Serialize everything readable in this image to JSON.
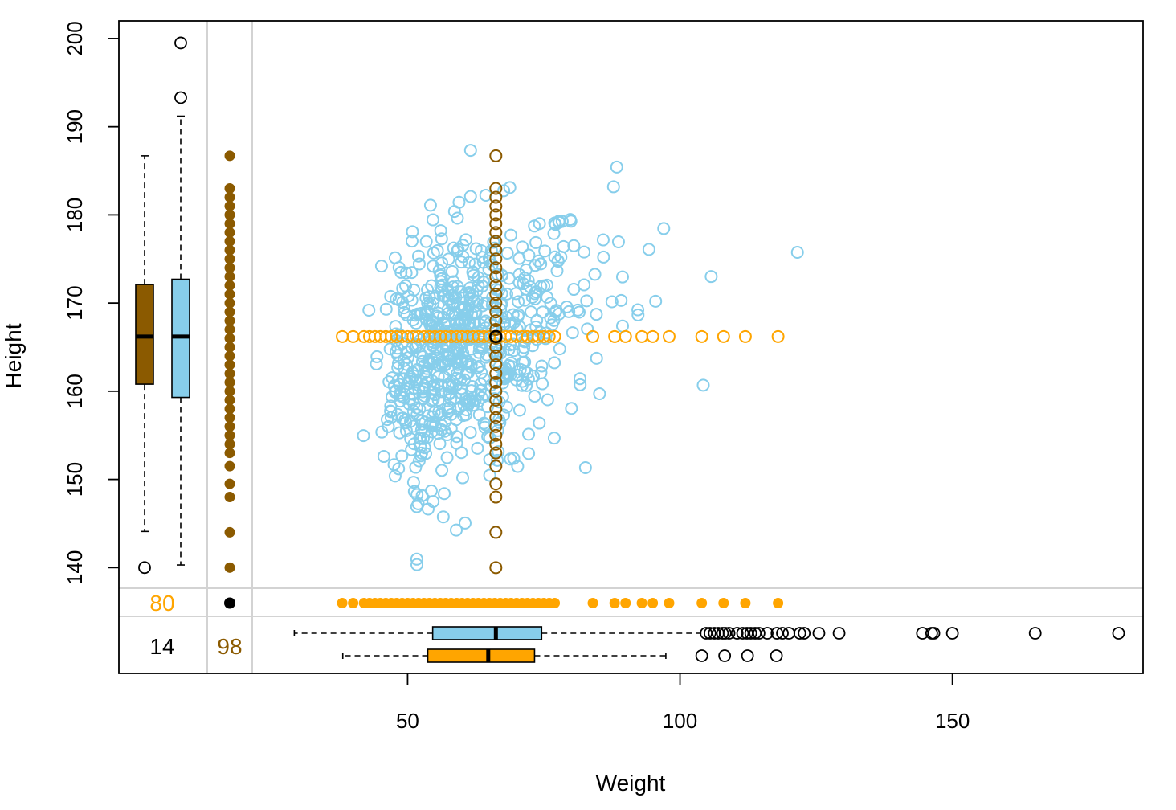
{
  "chart_data": {
    "type": "scatter",
    "title": "",
    "xlabel": "Weight",
    "ylabel": "Height",
    "xlim": [
      -3,
      185
    ],
    "ylim": [
      128,
      202
    ],
    "x_ticks": [
      50,
      100,
      150
    ],
    "y_ticks": [
      140,
      150,
      160,
      170,
      180,
      190,
      200
    ],
    "grid": false,
    "colors": {
      "observed": "#87CEEB",
      "imputed_weight": "#FFA500",
      "imputed_height": "#8B5A00",
      "both_missing": "#000000",
      "divider": "#D3D3D3"
    },
    "margin_counts": {
      "missing_height": "80",
      "missing_weight": "98",
      "missing_both": "14"
    },
    "height_boxplots": [
      {
        "name": "imputed",
        "fill": "#8B5A00",
        "whisker_low": 144.1,
        "q1": 160.8,
        "median": 166.2,
        "q3": 172.1,
        "whisker_high": 186.7,
        "outliers": [
          140.0
        ]
      },
      {
        "name": "observed",
        "fill": "#87CEEB",
        "whisker_low": 140.3,
        "q1": 159.3,
        "median": 166.2,
        "q3": 172.7,
        "whisker_high": 191.2,
        "outliers": [
          193.3,
          199.5
        ]
      }
    ],
    "weight_boxplots": [
      {
        "name": "observed",
        "fill": "#87CEEB",
        "whisker_low": 29.2,
        "q1": 54.6,
        "median": 66.2,
        "q3": 74.6,
        "whisker_high": 104.5,
        "outliers": [
          104.8,
          105.5,
          106.3,
          107.0,
          107.8,
          108.3,
          109.0,
          110.5,
          111.5,
          112.3,
          113.0,
          113.8,
          114.5,
          116.0,
          117.8,
          118.8,
          120.0,
          122.0,
          122.8,
          125.5,
          129.2,
          144.5,
          146.2,
          146.6,
          150.0,
          165.2,
          180.5
        ]
      },
      {
        "name": "imputed",
        "fill": "#FFA500",
        "whisker_low": 38.1,
        "q1": 53.7,
        "median": 64.8,
        "q3": 73.3,
        "whisker_high": 97.4,
        "outliers": [
          104.0,
          108.2,
          112.4,
          117.7
        ]
      }
    ],
    "imputed_weight_points": {
      "y": 166.2,
      "x": [
        38,
        40,
        42,
        43,
        44,
        45,
        46,
        47,
        48,
        49,
        50,
        51,
        52,
        53,
        54,
        55,
        56,
        57,
        58,
        59,
        60,
        61,
        62,
        63,
        64,
        65,
        66,
        67,
        68,
        69,
        70,
        71,
        72,
        73,
        74,
        75,
        76,
        77,
        84,
        88,
        90,
        93,
        95,
        98,
        104,
        108,
        112,
        118
      ]
    },
    "imputed_height_points": {
      "x": 66.2,
      "y": [
        140,
        144,
        148,
        149.5,
        151.5,
        153,
        154,
        155,
        156,
        157,
        158,
        159,
        160,
        161,
        162,
        163,
        164,
        165,
        166,
        167,
        168,
        169,
        170,
        171,
        172,
        173,
        174,
        175,
        176,
        177,
        178,
        179,
        180,
        181,
        182,
        183,
        186.7
      ]
    },
    "both_missing_point": {
      "x": 66.2,
      "y": 166.2
    }
  }
}
